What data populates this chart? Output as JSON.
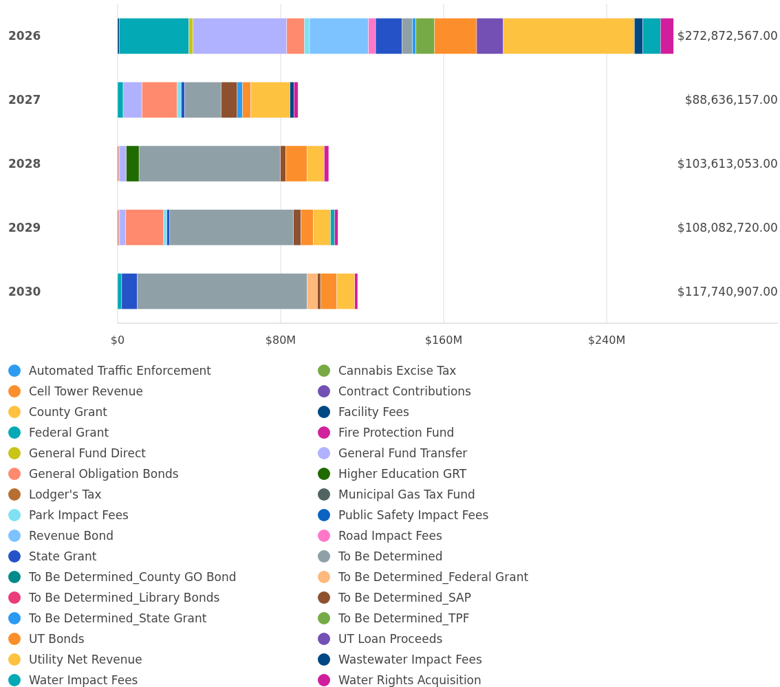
{
  "chart_data": {
    "type": "bar",
    "orientation": "horizontal",
    "stacked": true,
    "categories": [
      "2026",
      "2027",
      "2028",
      "2029",
      "2030"
    ],
    "xlim": [
      0,
      324
    ],
    "xticks": [
      {
        "value": 0,
        "label": "$0"
      },
      {
        "value": 80,
        "label": "$80M"
      },
      {
        "value": 160,
        "label": "$160M"
      },
      {
        "value": 240,
        "label": "$240M"
      }
    ],
    "grid": "x",
    "legend": "bottom",
    "annotations": [
      "$272,872,567.00",
      "$88,636,157.00",
      "$103,613,053.00",
      "$108,082,720.00",
      "$117,740,907.00"
    ],
    "series": [
      {
        "name": "Automated Traffic Enforcement",
        "color": "#2d9cf0",
        "values": [
          null,
          null,
          null,
          null,
          null
        ]
      },
      {
        "name": "Cannabis Excise Tax",
        "color": "#77aa44",
        "values": [
          null,
          null,
          null,
          null,
          null
        ]
      },
      {
        "name": "Cell Tower Revenue",
        "color": "#fb8f2b",
        "values": [
          null,
          null,
          null,
          null,
          null
        ]
      },
      {
        "name": "Contract Contributions",
        "color": "#7350b4",
        "values": [
          null,
          null,
          null,
          null,
          null
        ]
      },
      {
        "name": "County Grant",
        "color": "#fec240",
        "values": [
          null,
          null,
          null,
          null,
          null
        ]
      },
      {
        "name": "Facility Fees",
        "color": "#004882",
        "values": [
          0.8,
          null,
          null,
          null,
          null
        ]
      },
      {
        "name": "Federal Grant",
        "color": "#03a9b4",
        "values": [
          34.2,
          2.7,
          null,
          null,
          2.0
        ]
      },
      {
        "name": "Fire Protection Fund",
        "color": "#d1219c",
        "values": [
          null,
          null,
          0.5,
          0.5,
          null
        ]
      },
      {
        "name": "General Fund Direct",
        "color": "#c9c416",
        "values": [
          2.0,
          null,
          0.5,
          0.5,
          null
        ]
      },
      {
        "name": "General Fund Transfer",
        "color": "#b1b2ff",
        "values": [
          46.0,
          9.3,
          3.3,
          3.0,
          null
        ]
      },
      {
        "name": "General Obligation Bonds",
        "color": "#ff8a6e",
        "values": [
          8.7,
          17.2,
          null,
          18.6,
          null
        ]
      },
      {
        "name": "Higher Education GRT",
        "color": "#206b00",
        "values": [
          null,
          null,
          6.2,
          null,
          null
        ]
      },
      {
        "name": "Lodger's Tax",
        "color": "#b66e32",
        "values": [
          null,
          null,
          null,
          null,
          null
        ]
      },
      {
        "name": "Municipal Gas Tax Fund",
        "color": "#516461",
        "values": [
          null,
          null,
          null,
          null,
          null
        ]
      },
      {
        "name": "Park Impact Fees",
        "color": "#7fe1f2",
        "values": [
          2.5,
          2.0,
          null,
          1.6,
          null
        ]
      },
      {
        "name": "Public Safety Impact Fees",
        "color": "#0a63c2",
        "values": [
          null,
          null,
          null,
          null,
          null
        ]
      },
      {
        "name": "Revenue Bond",
        "color": "#7cc3ff",
        "values": [
          28.9,
          null,
          null,
          null,
          null
        ]
      },
      {
        "name": "Road Impact Fees",
        "color": "#ff78c8",
        "values": [
          3.5,
          null,
          null,
          null,
          null
        ]
      },
      {
        "name": "State Grant",
        "color": "#2553c7",
        "values": [
          12.9,
          1.7,
          null,
          1.4,
          7.7
        ]
      },
      {
        "name": "To Be Determined",
        "color": "#90a0a7",
        "values": [
          5.2,
          17.9,
          69.4,
          60.7,
          83.3
        ]
      },
      {
        "name": "To Be Determined_County GO Bond",
        "color": "#008b8b",
        "values": [
          null,
          null,
          null,
          null,
          null
        ]
      },
      {
        "name": "To Be Determined_Federal Grant",
        "color": "#feb97c",
        "values": [
          null,
          null,
          null,
          null,
          5.1
        ]
      },
      {
        "name": "To Be Determined_Library Bonds",
        "color": "#ec3b7a",
        "values": [
          null,
          null,
          null,
          null,
          null
        ]
      },
      {
        "name": "To Be Determined_SAP",
        "color": "#8d5130",
        "values": [
          null,
          7.9,
          2.6,
          3.7,
          1.5
        ]
      },
      {
        "name": "To Be Determined_State Grant",
        "color": "#2b9af3",
        "values": [
          1.7,
          2.6,
          null,
          null,
          null
        ]
      },
      {
        "name": "To Be Determined_TPF",
        "color": "#76aa46",
        "values": [
          9.1,
          null,
          null,
          null,
          null
        ]
      },
      {
        "name": "UT Bonds",
        "color": "#fc8f2b",
        "values": [
          20.7,
          4.1,
          10.6,
          6.0,
          8.0
        ]
      },
      {
        "name": "UT Loan Proceeds",
        "color": "#7450b5",
        "values": [
          13.1,
          null,
          null,
          null,
          null
        ]
      },
      {
        "name": "Utility Net Revenue",
        "color": "#fec241",
        "values": [
          64.3,
          19.2,
          8.3,
          8.5,
          8.8
        ]
      },
      {
        "name": "Wastewater Impact Fees",
        "color": "#004883",
        "values": [
          4.1,
          2.0,
          null,
          null,
          null
        ]
      },
      {
        "name": "Water Impact Fees",
        "color": "#03a9b5",
        "values": [
          8.7,
          null,
          null,
          2.0,
          null
        ]
      },
      {
        "name": "Water Rights Acquisition",
        "color": "#d11e9c",
        "values": [
          6.4,
          1.9,
          2.2,
          1.6,
          1.4
        ]
      }
    ]
  }
}
